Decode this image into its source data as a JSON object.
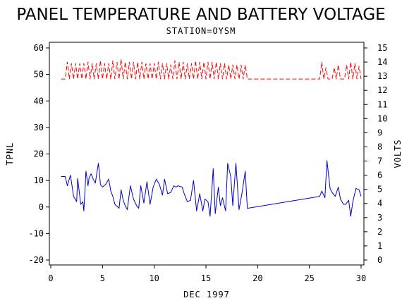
{
  "chart_data": {
    "type": "line",
    "title": "PANEL TEMPERATURE AND BATTERY VOLTAGE",
    "subtitle": "STATION=OYSM",
    "xlabel": "DEC 1997",
    "ylabel_left": "TPNL",
    "ylabel_right": "VOLTS",
    "xlim": [
      0,
      30
    ],
    "ylim_left": [
      -20,
      60
    ],
    "ylim_right": [
      0,
      15
    ],
    "x_ticks": [
      "0",
      "5",
      "10",
      "15",
      "20",
      "25",
      "30"
    ],
    "y_left_ticks": [
      "-20",
      "-10",
      "0",
      "10",
      "20",
      "30",
      "40",
      "50",
      "60"
    ],
    "y_right_ticks": [
      "0",
      "1",
      "2",
      "3",
      "4",
      "5",
      "6",
      "7",
      "8",
      "9",
      "10",
      "11",
      "12",
      "13",
      "14",
      "15"
    ],
    "grid": false,
    "series": [
      {
        "axis": "left",
        "color": "#0000cc",
        "dash": "solid",
        "x": [
          1.0,
          1.4,
          1.6,
          1.9,
          2.2,
          2.5,
          2.6,
          2.9,
          3.1,
          3.2,
          3.4,
          3.6,
          3.7,
          3.9,
          4.1,
          4.3,
          4.6,
          4.7,
          4.8,
          5.0,
          5.3,
          5.6,
          5.8,
          6.0,
          6.2,
          6.6,
          6.8,
          7.0,
          7.2,
          7.4,
          7.7,
          8.0,
          8.3,
          8.5,
          8.7,
          9.0,
          9.3,
          9.6,
          9.9,
          10.2,
          10.5,
          10.8,
          11.0,
          11.3,
          11.6,
          11.9,
          12.1,
          12.3,
          12.7,
          12.9,
          13.2,
          13.5,
          13.8,
          14.1,
          14.4,
          14.7,
          14.9,
          15.2,
          15.4,
          15.7,
          15.9,
          16.2,
          16.4,
          16.6,
          16.9,
          17.1,
          17.4,
          17.6,
          17.9,
          18.2,
          18.5,
          18.8,
          19.0,
          26.0,
          26.2,
          26.5,
          26.7,
          27.0,
          27.2,
          27.5,
          27.8,
          28.0,
          28.3,
          28.5,
          28.8,
          29.0,
          29.2,
          29.5,
          29.8,
          30.0
        ],
        "values": [
          11.5,
          11.5,
          8.0,
          12.0,
          4.0,
          2.0,
          10.8,
          1.0,
          2.0,
          -1.5,
          13.5,
          8.0,
          11.0,
          12.5,
          10.5,
          9.0,
          16.5,
          13.0,
          8.5,
          7.5,
          8.5,
          10.5,
          6.0,
          4.0,
          1.0,
          -0.5,
          6.5,
          2.5,
          0.5,
          -1.0,
          8.0,
          3.0,
          0.5,
          -0.5,
          8.0,
          1.5,
          9.5,
          1.0,
          7.5,
          10.5,
          8.5,
          4.5,
          10.5,
          5.0,
          5.5,
          8.0,
          7.5,
          8.0,
          7.5,
          5.0,
          2.0,
          2.5,
          10.0,
          -1.5,
          5.0,
          -1.5,
          3.0,
          2.0,
          -3.5,
          14.5,
          -2.5,
          7.5,
          0.5,
          3.5,
          -1.5,
          16.5,
          11.5,
          0.5,
          16.5,
          -1.0,
          5.5,
          13.5,
          -0.5,
          4.0,
          6.0,
          3.5,
          17.5,
          7.0,
          5.5,
          4.0,
          7.5,
          3.0,
          1.0,
          1.0,
          2.5,
          -3.5,
          2.0,
          7.0,
          6.5,
          4.0
        ]
      },
      {
        "axis": "right",
        "color": "#ff0000",
        "dash": "dashed",
        "x": [
          1.0,
          1.4,
          1.6,
          1.8,
          2.0,
          2.2,
          2.4,
          2.6,
          2.8,
          3.0,
          3.2,
          3.4,
          3.6,
          3.8,
          4.0,
          4.2,
          4.4,
          4.6,
          4.8,
          5.0,
          5.2,
          5.4,
          5.6,
          5.8,
          6.0,
          6.2,
          6.4,
          6.6,
          6.8,
          7.0,
          7.2,
          7.4,
          7.6,
          7.8,
          8.0,
          8.2,
          8.4,
          8.6,
          8.8,
          9.0,
          9.2,
          9.4,
          9.6,
          9.8,
          10.0,
          10.2,
          10.4,
          10.6,
          10.8,
          11.0,
          11.2,
          11.4,
          11.6,
          11.8,
          12.0,
          12.2,
          12.4,
          12.6,
          12.8,
          13.0,
          13.2,
          13.4,
          13.6,
          13.8,
          14.0,
          14.2,
          14.4,
          14.6,
          14.8,
          15.0,
          15.2,
          15.4,
          15.6,
          15.8,
          16.0,
          16.2,
          16.4,
          16.6,
          16.8,
          17.0,
          17.2,
          17.4,
          17.6,
          17.8,
          18.0,
          18.2,
          18.4,
          18.6,
          18.8,
          19.0,
          26.0,
          26.2,
          26.4,
          26.6,
          26.8,
          27.0,
          27.2,
          27.4,
          27.6,
          27.8,
          28.0,
          28.2,
          28.4,
          28.6,
          28.8,
          29.0,
          29.2,
          29.4,
          29.6,
          29.8,
          30.0
        ],
        "values": [
          12.8,
          12.8,
          14.0,
          12.8,
          13.9,
          12.8,
          13.9,
          12.8,
          13.9,
          12.8,
          13.9,
          12.8,
          14.0,
          12.8,
          13.9,
          12.8,
          13.9,
          12.8,
          14.1,
          12.8,
          13.9,
          12.8,
          13.9,
          12.8,
          14.1,
          12.8,
          14.0,
          12.8,
          14.2,
          12.8,
          14.0,
          12.8,
          14.0,
          12.8,
          14.0,
          12.8,
          14.0,
          12.8,
          14.0,
          12.8,
          13.9,
          12.8,
          13.9,
          12.8,
          13.9,
          12.8,
          14.0,
          12.8,
          13.9,
          12.8,
          13.9,
          12.8,
          13.8,
          12.8,
          14.1,
          12.8,
          14.0,
          12.8,
          14.0,
          12.8,
          13.9,
          12.8,
          13.9,
          12.8,
          14.1,
          12.8,
          14.0,
          12.8,
          14.0,
          12.8,
          14.0,
          12.8,
          14.0,
          12.8,
          14.0,
          12.8,
          13.9,
          12.8,
          13.9,
          12.8,
          13.8,
          12.8,
          13.8,
          12.8,
          13.8,
          12.8,
          13.8,
          12.8,
          13.8,
          12.8,
          12.8,
          14.0,
          12.8,
          13.6,
          12.8,
          12.8,
          12.8,
          13.6,
          12.8,
          13.8,
          12.8,
          12.8,
          12.8,
          13.8,
          12.8,
          14.0,
          12.8,
          13.9,
          12.8,
          13.7,
          12.8
        ]
      }
    ]
  }
}
